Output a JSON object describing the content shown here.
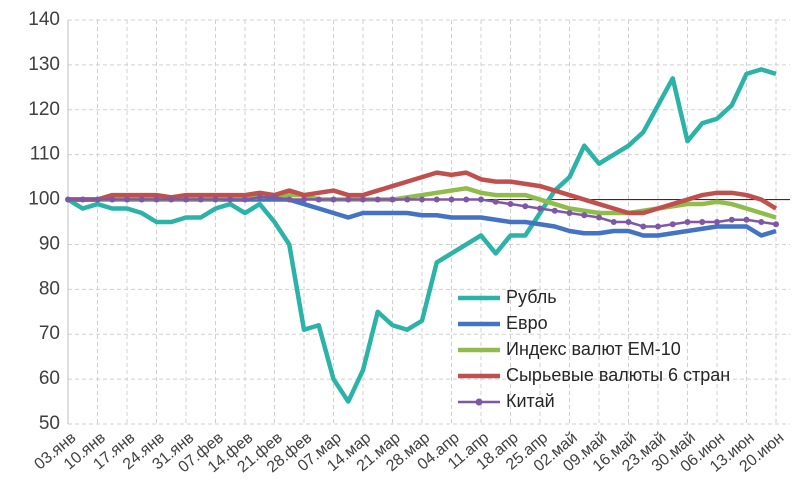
{
  "chart_data": {
    "type": "line",
    "categories": [
      "03.янв",
      null,
      "10.янв",
      null,
      "17.янв",
      null,
      "24.янв",
      null,
      "31.янв",
      null,
      "07.фев",
      null,
      "14.фев",
      null,
      "21.фев",
      null,
      "28.фев",
      null,
      "07.мар",
      null,
      "14.мар",
      null,
      "21.мар",
      null,
      "28.мар",
      null,
      "04.апр",
      null,
      "11.апр",
      null,
      "18.апр",
      null,
      "25.апр",
      null,
      "02.май",
      null,
      "09.май",
      null,
      "16.май",
      null,
      "23.май",
      null,
      "30.май",
      null,
      "06.июн",
      null,
      "13.июн",
      null,
      "20.июн"
    ],
    "series": [
      {
        "name": "Рубль",
        "color": "#2ab3a6",
        "values": [
          100,
          98,
          99,
          98,
          98,
          97,
          95,
          95,
          96,
          96,
          98,
          99,
          97,
          99,
          95,
          90,
          71,
          72,
          60,
          55,
          62,
          75,
          72,
          71,
          73,
          86,
          88,
          90,
          92,
          88,
          92,
          92,
          97,
          102,
          105,
          112,
          108,
          110,
          112,
          115,
          121,
          127,
          113,
          117,
          118,
          121,
          128,
          129,
          128
        ]
      },
      {
        "name": "Евро",
        "color": "#4472c4",
        "values": [
          100,
          100,
          100,
          100,
          100,
          100,
          100,
          100,
          100,
          100,
          100,
          100,
          100,
          100,
          100,
          100,
          99,
          98,
          97,
          96,
          97,
          97,
          97,
          97,
          96.5,
          96.5,
          96,
          96,
          96,
          95.5,
          95,
          95,
          94.5,
          94,
          93,
          92.5,
          92.5,
          93,
          93,
          92,
          92,
          92.5,
          93,
          93.5,
          94,
          94,
          94,
          92,
          93
        ]
      },
      {
        "name": "Индекс валют EM-10",
        "color": "#8fbc4a",
        "values": [
          100,
          100,
          100,
          100,
          100,
          100,
          100,
          100,
          100,
          100,
          100,
          100.5,
          100.5,
          100.5,
          101,
          101,
          101,
          100,
          100,
          100,
          100,
          100,
          100,
          100.5,
          101,
          101.5,
          102,
          102.5,
          101.5,
          101,
          101,
          101,
          100,
          99,
          98,
          97.5,
          97,
          97,
          97,
          97.5,
          98,
          98.5,
          99,
          99,
          99.5,
          99,
          98,
          97,
          96
        ]
      },
      {
        "name": "Сырьевые валюты 6 стран",
        "color": "#c0504d",
        "values": [
          100,
          100,
          100,
          101,
          101,
          101,
          101,
          100.5,
          101,
          101,
          101,
          101,
          101,
          101.5,
          101,
          102,
          101,
          101.5,
          102,
          101,
          101,
          102,
          103,
          104,
          105,
          106,
          105.5,
          106,
          104.5,
          104,
          104,
          103.5,
          103,
          102,
          101,
          100,
          99,
          98,
          97,
          97,
          98,
          99,
          100,
          101,
          101.5,
          101.5,
          101,
          100,
          98
        ]
      },
      {
        "name": "Китай",
        "color": "#7e57a6",
        "marker": "circle",
        "values": [
          100,
          100,
          100,
          100,
          100,
          100,
          100,
          100,
          100,
          100,
          100,
          100,
          100,
          100.5,
          100.5,
          100,
          100,
          100,
          100,
          100,
          100,
          100,
          100,
          100,
          100,
          100,
          100,
          100,
          100,
          99.5,
          99,
          98.5,
          98,
          97.5,
          97,
          96.5,
          96,
          95,
          95,
          94,
          94,
          94.5,
          95,
          95,
          95,
          95.5,
          95.5,
          95,
          94.5
        ]
      }
    ],
    "reference_line": {
      "value": 100,
      "color": "#a00000"
    },
    "ylim": [
      50,
      140
    ],
    "yticks": [
      50,
      60,
      70,
      80,
      90,
      100,
      110,
      120,
      130,
      140
    ],
    "grid": true,
    "legend": "lower right"
  }
}
